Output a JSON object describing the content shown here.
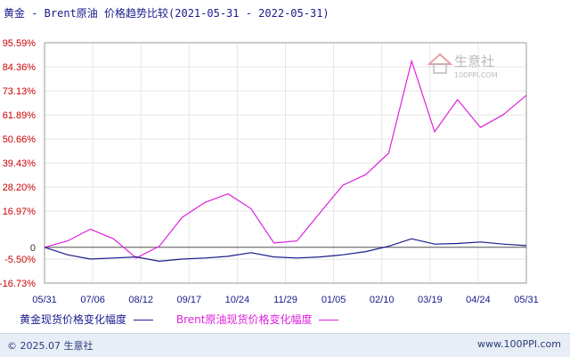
{
  "header": {
    "title": "黄金 - Brent原油 价格趋势比较(2021-05-31 - 2022-05-31)"
  },
  "watermark": {
    "name": "生意社",
    "url": "100PPI.COM"
  },
  "legend": {
    "gold_label": "黄金现货价格变化幅度",
    "brent_label": "Brent原油现货价格变化幅度"
  },
  "footer": {
    "copyright": "© 2025.07 生意社",
    "site": "www.100PPI.com"
  },
  "colors": {
    "gold": "#1a1a8c",
    "brent": "#dd22dd",
    "y_tick": "#cc0000",
    "x_tick": "#1a1a8c"
  },
  "chart_data": {
    "type": "line",
    "title": "黄金 - Brent原油 价格趋势比较(2021-05-31 - 2022-05-31)",
    "ylim": [
      -16.73,
      95.59
    ],
    "y_ticks": [
      "95.59%",
      "84.36%",
      "73.13%",
      "61.89%",
      "50.66%",
      "39.43%",
      "28.20%",
      "16.97%",
      "0",
      "-5.50%",
      "-16.73%"
    ],
    "y_tick_values": [
      95.59,
      84.36,
      73.13,
      61.89,
      50.66,
      39.43,
      28.2,
      16.97,
      0,
      -5.5,
      -16.73
    ],
    "x_ticks": [
      "05/31",
      "07/06",
      "08/12",
      "09/17",
      "10/24",
      "11/29",
      "01/05",
      "02/10",
      "03/19",
      "04/24",
      "05/31"
    ],
    "x": [
      "05/31",
      "06/15",
      "07/06",
      "07/25",
      "08/12",
      "08/25",
      "09/17",
      "10/05",
      "10/24",
      "11/10",
      "11/29",
      "12/15",
      "01/05",
      "01/25",
      "02/10",
      "02/24",
      "03/08",
      "03/19",
      "04/05",
      "04/24",
      "05/10",
      "05/31"
    ],
    "series": [
      {
        "name": "黄金现货价格变化幅度",
        "values": [
          0,
          -3.5,
          -5.5,
          -5.0,
          -4.5,
          -6.5,
          -5.5,
          -5.0,
          -4.2,
          -2.5,
          -4.5,
          -5.0,
          -4.5,
          -3.5,
          -2.0,
          0.5,
          4.0,
          1.5,
          1.8,
          2.5,
          1.5,
          0.8
        ]
      },
      {
        "name": "Brent原油现货价格变化幅度",
        "values": [
          0,
          3.0,
          8.5,
          4.0,
          -5.0,
          0.5,
          14.0,
          21.0,
          25.0,
          18.0,
          2.0,
          3.0,
          16.0,
          29.0,
          34.0,
          44.0,
          87.0,
          54.0,
          69.0,
          56.0,
          62.0,
          71.0
        ]
      }
    ],
    "grid": true,
    "legend_position": "bottom-left"
  }
}
